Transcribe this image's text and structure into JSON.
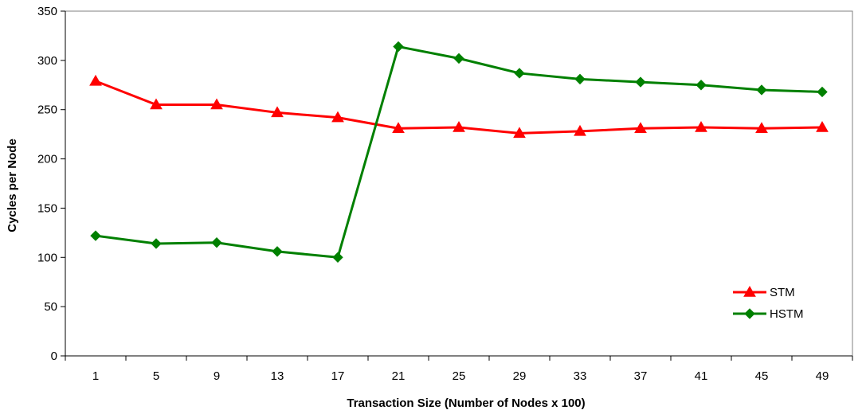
{
  "chart_data": {
    "type": "line",
    "xlabel": "Transaction Size (Number of Nodes x 100)",
    "ylabel": "Cycles per Node",
    "categories": [
      "1",
      "5",
      "9",
      "13",
      "17",
      "21",
      "25",
      "29",
      "33",
      "37",
      "41",
      "45",
      "49"
    ],
    "ylim": [
      0,
      350
    ],
    "yticks": [
      0,
      50,
      100,
      150,
      200,
      250,
      300,
      350
    ],
    "grid": false,
    "legend_position": "right",
    "series": [
      {
        "name": "STM",
        "color": "#ff0000",
        "marker": "triangle",
        "values": [
          279,
          255,
          255,
          247,
          242,
          231,
          232,
          226,
          228,
          231,
          232,
          231,
          232
        ]
      },
      {
        "name": "HSTM",
        "color": "#008000",
        "marker": "diamond",
        "values": [
          122,
          114,
          115,
          106,
          100,
          314,
          302,
          287,
          281,
          278,
          275,
          270,
          268
        ]
      }
    ]
  }
}
